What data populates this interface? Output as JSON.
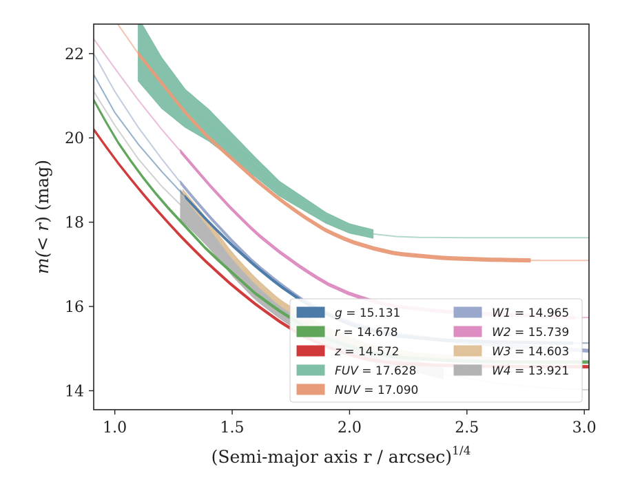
{
  "chart_data": {
    "type": "line",
    "title": "",
    "xlabel": "(Semi-major axis r / arcsec)",
    "xlabel_var": "r",
    "xlabel_exp": "1/4",
    "ylabel_prefix": "m(",
    "ylabel_var": "< r",
    "ylabel_suffix": ") (mag)",
    "xlim": [
      0.91,
      3.02
    ],
    "ylim": [
      22.7,
      13.55
    ],
    "y_inverted": true,
    "xticks": [
      1.0,
      1.5,
      2.0,
      2.5,
      3.0
    ],
    "xtick_labels": [
      "1.0",
      "1.5",
      "2.0",
      "2.5",
      "3.0"
    ],
    "yticks": [
      14,
      16,
      18,
      20,
      22
    ],
    "ytick_labels": [
      "14",
      "16",
      "18",
      "20",
      "22"
    ],
    "grid": false,
    "legend_position": "lower-right",
    "series": [
      {
        "name": "g",
        "value_text": "= 15.131",
        "color": "#4c7ba8",
        "x": [
          0.91,
          1.0,
          1.1,
          1.2,
          1.3,
          1.4,
          1.5,
          1.6,
          1.7,
          1.8,
          1.9,
          2.0,
          2.1,
          2.2,
          2.4,
          2.6,
          2.8,
          2.95,
          3.02
        ],
        "y": [
          21.5,
          20.6,
          19.85,
          19.2,
          18.6,
          18.0,
          17.45,
          16.95,
          16.5,
          16.12,
          15.82,
          15.58,
          15.42,
          15.3,
          15.2,
          15.16,
          15.14,
          15.13,
          15.13
        ],
        "band_x": [
          1.3,
          2.95
        ],
        "band_width": 0.06
      },
      {
        "name": "r",
        "value_text": "= 14.678",
        "color": "#5fa55a",
        "x": [
          0.91,
          1.0,
          1.1,
          1.2,
          1.3,
          1.4,
          1.5,
          1.6,
          1.7,
          1.8,
          1.9,
          2.0,
          2.1,
          2.2,
          2.4,
          2.6,
          2.8,
          2.95,
          3.02
        ],
        "y": [
          20.9,
          20.0,
          19.2,
          18.5,
          17.9,
          17.3,
          16.8,
          16.3,
          15.9,
          15.55,
          15.25,
          15.05,
          14.9,
          14.8,
          14.72,
          14.69,
          14.68,
          14.68,
          14.68
        ],
        "band_x": [
          0.91,
          3.02
        ],
        "band_width": 0.06
      },
      {
        "name": "z",
        "value_text": "= 14.572",
        "color": "#d0393a",
        "x": [
          0.91,
          1.0,
          1.1,
          1.2,
          1.3,
          1.4,
          1.5,
          1.6,
          1.7,
          1.8,
          1.9,
          2.0,
          2.1,
          2.2,
          2.4,
          2.6,
          2.8,
          2.95,
          3.02
        ],
        "y": [
          20.2,
          19.5,
          18.8,
          18.15,
          17.55,
          17.0,
          16.5,
          16.05,
          15.65,
          15.3,
          15.05,
          14.85,
          14.72,
          14.65,
          14.6,
          14.58,
          14.57,
          14.57,
          14.57
        ],
        "band_x": [
          0.91,
          3.02
        ],
        "band_width": 0.06
      },
      {
        "name": "FUV",
        "value_text": "= 17.628",
        "color": "#7fbfa6",
        "x": [
          1.1,
          1.2,
          1.3,
          1.4,
          1.5,
          1.6,
          1.7,
          1.8,
          1.9,
          2.0,
          2.1,
          2.2,
          2.3,
          2.5,
          2.7,
          3.02
        ],
        "y": [
          22.1,
          21.3,
          20.7,
          20.3,
          19.8,
          19.3,
          18.8,
          18.45,
          18.1,
          17.85,
          17.72,
          17.66,
          17.64,
          17.63,
          17.63,
          17.63
        ],
        "band_x": [
          1.1,
          2.1
        ],
        "band_width": [
          1.5,
          1.2,
          0.9,
          0.75,
          0.6,
          0.45,
          0.35,
          0.3,
          0.25,
          0.22,
          0.2
        ]
      },
      {
        "name": "NUV",
        "value_text": "= 17.090",
        "color": "#e99c7a",
        "x": [
          0.91,
          1.0,
          1.1,
          1.2,
          1.3,
          1.4,
          1.5,
          1.6,
          1.7,
          1.8,
          1.9,
          2.0,
          2.1,
          2.2,
          2.4,
          2.6,
          2.8,
          3.02
        ],
        "y": [
          23.5,
          22.8,
          22.0,
          21.3,
          20.6,
          20.0,
          19.5,
          19.0,
          18.55,
          18.15,
          17.8,
          17.55,
          17.38,
          17.25,
          17.15,
          17.11,
          17.09,
          17.09
        ],
        "band_x": [
          1.1,
          2.77
        ],
        "band_width": 0.08
      },
      {
        "name": "W1",
        "value_text": "= 14.965",
        "color": "#9aa8cc",
        "x": [
          0.91,
          1.0,
          1.1,
          1.2,
          1.3,
          1.4,
          1.5,
          1.6,
          1.7,
          1.8,
          1.9,
          2.0,
          2.1,
          2.2,
          2.4,
          2.6,
          2.8,
          3.02
        ],
        "y": [
          22.0,
          21.1,
          20.25,
          19.5,
          18.8,
          18.15,
          17.55,
          17.0,
          16.55,
          16.15,
          15.85,
          15.62,
          15.45,
          15.33,
          15.2,
          15.1,
          15.02,
          14.95
        ],
        "band_x": [
          1.28,
          3.02
        ],
        "band_width": 0.07
      },
      {
        "name": "W2",
        "value_text": "= 15.739",
        "color": "#dd8dc1",
        "x": [
          0.91,
          1.0,
          1.1,
          1.2,
          1.3,
          1.4,
          1.5,
          1.6,
          1.7,
          1.8,
          1.9,
          2.0,
          2.1,
          2.2,
          2.4,
          2.6,
          2.8,
          2.96,
          3.02
        ],
        "y": [
          22.35,
          21.65,
          20.9,
          20.2,
          19.55,
          18.9,
          18.3,
          17.75,
          17.3,
          16.9,
          16.55,
          16.3,
          16.12,
          16.0,
          15.88,
          15.82,
          15.78,
          15.73,
          15.74
        ],
        "band_x": [
          1.28,
          2.96
        ],
        "band_width": 0.07
      },
      {
        "name": "W3",
        "value_text": "= 14.603",
        "color": "#e0c39a",
        "x": [
          1.29,
          1.4,
          1.5,
          1.6,
          1.7,
          1.8,
          1.9,
          2.0,
          2.1,
          2.2,
          2.3,
          2.4,
          2.5,
          2.61
        ],
        "y": [
          18.7,
          17.95,
          17.2,
          16.6,
          16.1,
          15.75,
          15.45,
          15.2,
          15.0,
          14.9,
          14.82,
          14.78,
          14.74,
          14.72
        ],
        "band_x": [
          1.29,
          2.61
        ],
        "band_width": 0.14
      },
      {
        "name": "W4",
        "value_text": "= 13.921",
        "color": "#b3b3b3",
        "x": [
          0.91,
          1.0,
          1.1,
          1.2,
          1.3,
          1.4,
          1.5,
          1.6,
          1.7,
          1.8,
          1.9,
          2.0,
          2.1,
          2.2,
          2.3,
          2.4,
          2.6,
          2.8,
          3.02
        ],
        "y": [
          21.1,
          20.3,
          19.5,
          18.85,
          18.3,
          17.7,
          17.0,
          16.4,
          15.95,
          15.55,
          15.25,
          15.0,
          14.82,
          14.68,
          14.55,
          14.4,
          14.2,
          14.08,
          14.02
        ],
        "band_x": [
          1.28,
          2.4
        ],
        "band_width": [
          0.7,
          0.6,
          0.55,
          0.5,
          0.45,
          0.4,
          0.35,
          0.32,
          0.3,
          0.28,
          0.26,
          0.25
        ]
      }
    ]
  }
}
